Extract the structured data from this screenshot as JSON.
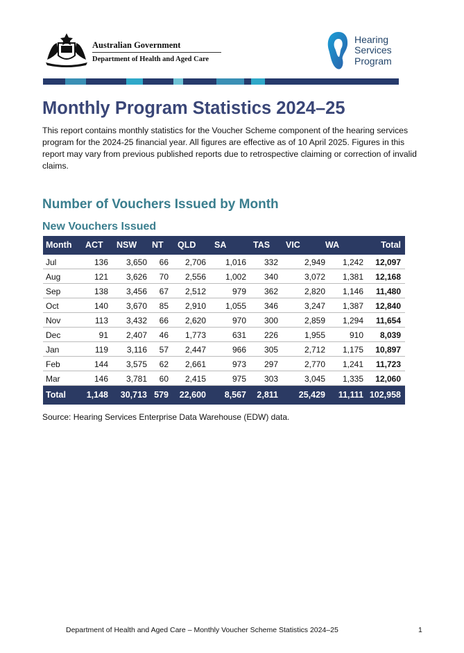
{
  "header": {
    "gov_name": "Australian Government",
    "dept_name": "Department of Health and Aged Care",
    "logo_lines": [
      "Hearing",
      "Services",
      "Program"
    ]
  },
  "title": "Monthly Program Statistics 2024–25",
  "intro": "This report contains monthly statistics for the Voucher Scheme component of the hearing services program for the 2024-25 financial year. All figures are effective as of 10 April 2025. Figures in this report may vary from previous published reports due to retrospective claiming or correction of invalid claims.",
  "section_heading": "Number of Vouchers Issued by Month",
  "subheading": "New Vouchers Issued",
  "table": {
    "columns": [
      "Month",
      "ACT",
      "NSW",
      "NT",
      "QLD",
      "SA",
      "TAS",
      "VIC",
      "WA",
      "Total"
    ],
    "rows": [
      [
        "Jul",
        "136",
        "3,650",
        "66",
        "2,706",
        "1,016",
        "332",
        "2,949",
        "1,242",
        "12,097"
      ],
      [
        "Aug",
        "121",
        "3,626",
        "70",
        "2,556",
        "1,002",
        "340",
        "3,072",
        "1,381",
        "12,168"
      ],
      [
        "Sep",
        "138",
        "3,456",
        "67",
        "2,512",
        "979",
        "362",
        "2,820",
        "1,146",
        "11,480"
      ],
      [
        "Oct",
        "140",
        "3,670",
        "85",
        "2,910",
        "1,055",
        "346",
        "3,247",
        "1,387",
        "12,840"
      ],
      [
        "Nov",
        "113",
        "3,432",
        "66",
        "2,620",
        "970",
        "300",
        "2,859",
        "1,294",
        "11,654"
      ],
      [
        "Dec",
        "91",
        "2,407",
        "46",
        "1,773",
        "631",
        "226",
        "1,955",
        "910",
        "8,039"
      ],
      [
        "Jan",
        "119",
        "3,116",
        "57",
        "2,447",
        "966",
        "305",
        "2,712",
        "1,175",
        "10,897"
      ],
      [
        "Feb",
        "144",
        "3,575",
        "62",
        "2,661",
        "973",
        "297",
        "2,770",
        "1,241",
        "11,723"
      ],
      [
        "Mar",
        "146",
        "3,781",
        "60",
        "2,415",
        "975",
        "303",
        "3,045",
        "1,335",
        "12,060"
      ]
    ],
    "total": [
      "Total",
      "1,148",
      "30,713",
      "579",
      "22,600",
      "8,567",
      "2,811",
      "25,429",
      "11,111",
      "102,958"
    ]
  },
  "source": "Source: Hearing Services Enterprise Data Warehouse (EDW) data.",
  "footer": {
    "text": "Department of Health and Aged Care – Monthly Voucher Scheme Statistics 2024–25",
    "page": "1"
  }
}
